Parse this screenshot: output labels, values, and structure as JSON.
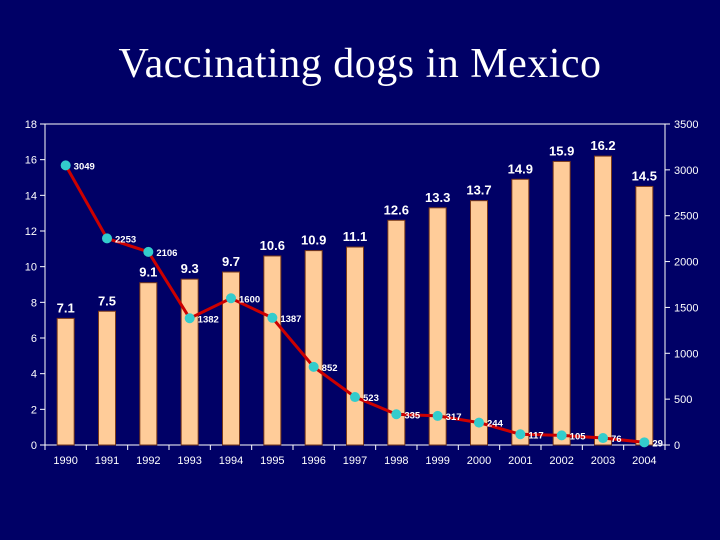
{
  "slide": {
    "title": "Vaccinating dogs in Mexico"
  },
  "chart_data": {
    "type": "bar",
    "categories": [
      "1990",
      "1991",
      "1992",
      "1993",
      "1994",
      "1995",
      "1996",
      "1997",
      "1998",
      "1999",
      "2000",
      "2001",
      "2002",
      "2003",
      "2004"
    ],
    "series": [
      {
        "type": "bar",
        "axis": "left",
        "values": [
          7.1,
          7.5,
          9.1,
          9.3,
          9.7,
          10.6,
          10.9,
          11.1,
          12.6,
          13.3,
          13.7,
          14.9,
          15.9,
          16.2,
          14.5
        ],
        "labels": [
          "7.1",
          "7.5",
          "9.1",
          "9.3",
          "9.7",
          "10.6",
          "10.9",
          "11.1",
          "12.6",
          "13.3",
          "13.7",
          "14.9",
          "15.9",
          "16.2",
          "14.5"
        ]
      },
      {
        "type": "line",
        "axis": "right",
        "values": [
          3049,
          2253,
          2106,
          1382,
          1600,
          1387,
          852,
          523,
          335,
          317,
          244,
          117,
          105,
          76,
          29
        ],
        "labels": [
          "3049",
          "2253",
          "2106",
          "1382",
          "1600",
          "1387",
          "852",
          "523",
          "335",
          "317",
          "244",
          "117",
          "105",
          "76",
          "29"
        ]
      }
    ],
    "y_left": {
      "min": 0,
      "max": 18,
      "ticks": [
        "0",
        "2",
        "4",
        "6",
        "8",
        "10",
        "12",
        "14",
        "16",
        "18"
      ]
    },
    "y_right": {
      "min": 0,
      "max": 3500,
      "ticks": [
        "0",
        "500",
        "1000",
        "1500",
        "2000",
        "2500",
        "3000",
        "3500"
      ]
    },
    "grid": false,
    "legend": "none",
    "colors": {
      "background": "#000066",
      "plot_area": "#000066",
      "bar_fill": "#ffcc99",
      "bar_stroke": "#7a3a1a",
      "line": "#cc0000",
      "marker": "#33cccc",
      "text": "#ffffff"
    }
  }
}
